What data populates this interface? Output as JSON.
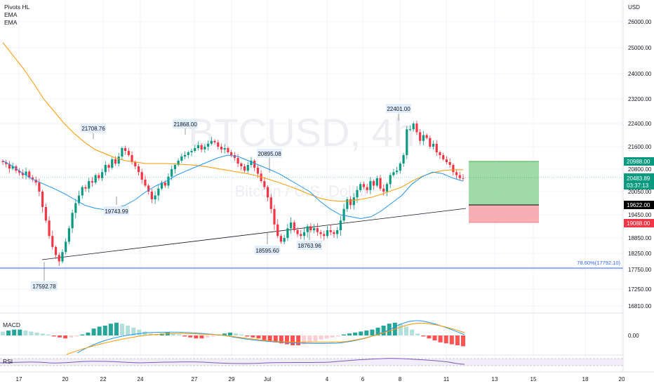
{
  "legend": {
    "items": [
      "Pivots HL",
      "EMA",
      "EMA"
    ]
  },
  "watermark": {
    "symbol": "BTCUSD, 4h",
    "description": "Bitcoin / U.S. Dollar"
  },
  "price_axis": {
    "currency": "USD",
    "ticks": [
      "26000.00",
      "25000.00",
      "24000.00",
      "23200.00",
      "22400.00",
      "21600.00",
      "20800.00",
      "20050.00",
      "19450.00",
      "18850.00",
      "18250.00",
      "17750.00",
      "17250.00",
      "16810.00"
    ]
  },
  "tags": {
    "take_profit": "20988.00",
    "last_price": "20483.89",
    "countdown": "03:37:13",
    "entry": "19622.00",
    "stop_loss": "19088.00",
    "colors": {
      "take_profit": "#089981",
      "last_price": "#089981",
      "entry": "#000000",
      "stop_loss": "#f23645"
    }
  },
  "fib": {
    "label": "78.60%(17792.10)",
    "color": "#2962ff"
  },
  "pivots": [
    "21708.76",
    "19743.99",
    "21868.00",
    "20895.08",
    "18595.60",
    "18763.96",
    "22401.00",
    "17592.78"
  ],
  "macd": {
    "title": "MACD",
    "zero_label": "0.00"
  },
  "rsi": {
    "title": "RSI"
  },
  "time_axis": {
    "labels": [
      "17",
      "20",
      "22",
      "24",
      "27",
      "29",
      "Jul",
      "4",
      "6",
      "8",
      "11",
      "13",
      "15",
      "18",
      "20"
    ]
  },
  "chart_data": {
    "type": "candlestick",
    "symbol": "BTCUSD",
    "interval": "4h",
    "currency": "USD",
    "ylim": [
      16810,
      26000
    ],
    "close": [
      21050,
      20980,
      20820,
      20900,
      20750,
      20680,
      20600,
      20720,
      20520,
      20450,
      20350,
      20050,
      19650,
      19300,
      18900,
      18500,
      18200,
      18000,
      18300,
      18700,
      19100,
      19500,
      19750,
      19950,
      20200,
      20150,
      20400,
      20350,
      20600,
      20500,
      20700,
      20950,
      20850,
      21150,
      21000,
      21250,
      21550,
      21450,
      21300,
      21050,
      20900,
      20700,
      20450,
      20250,
      20050,
      19850,
      19950,
      20150,
      20350,
      20250,
      20550,
      20800,
      20950,
      21100,
      21250,
      21300,
      21400,
      21450,
      21550,
      21650,
      21500,
      21600,
      21700,
      21800,
      21750,
      21600,
      21500,
      21550,
      21400,
      21300,
      21200,
      21000,
      20900,
      20750,
      20950,
      21100,
      20850,
      20650,
      20400,
      20200,
      19900,
      19600,
      19200,
      18900,
      18700,
      18850,
      19100,
      19250,
      19050,
      18950,
      18900,
      19000,
      19150,
      19050,
      19100,
      19000,
      18950,
      18900,
      19050,
      19000,
      18950,
      19050,
      19300,
      19600,
      19850,
      19700,
      19900,
      20100,
      20300,
      20200,
      20100,
      20400,
      20250,
      20500,
      20150,
      20050,
      20300,
      20600,
      20700,
      20750,
      21000,
      21300,
      22200,
      22200,
      22400,
      22100,
      21800,
      22000,
      21900,
      21600,
      21700,
      21400,
      21300,
      21150,
      21050,
      20950,
      20700,
      20600,
      20500,
      20483.89
    ],
    "ema_fast": {
      "color": "#2196f3",
      "values": [
        21100,
        20900,
        20650,
        20450,
        20300,
        20150,
        20000,
        19850,
        19700,
        19620,
        19580,
        19620,
        19700,
        19850,
        20050,
        20250,
        20400,
        20600,
        20750,
        20900,
        21050,
        21200,
        21300,
        21250,
        21100,
        20950,
        20800,
        20650,
        20450,
        20250,
        20050,
        19800,
        19600,
        19450,
        19400,
        19350,
        19400,
        19550,
        19750,
        19950,
        20300,
        20550,
        20700,
        20650,
        20500,
        20400
      ]
    },
    "ema_slow": {
      "color": "#ff9800",
      "values": [
        25200,
        24700,
        24200,
        23700,
        23200,
        22800,
        22400,
        22050,
        21750,
        21500,
        21350,
        21200,
        21100,
        21050,
        21000,
        21000,
        21000,
        20980,
        20960,
        20930,
        20880,
        20820,
        20760,
        20700,
        20640,
        20560,
        20460,
        20350,
        20230,
        20100,
        19980,
        19880,
        19820,
        19800,
        19810,
        19850,
        19900,
        19980,
        20080,
        20200,
        20400,
        20560,
        20680,
        20750,
        20780,
        20780
      ]
    },
    "pivots_high": [
      21708.76,
      21868.0,
      20895.08,
      22401.0
    ],
    "pivots_low": [
      17592.78,
      19743.99,
      18595.6,
      18763.96
    ],
    "trend_line": [
      17620,
      19700
    ],
    "fib_level": {
      "label": "78.60%",
      "value": 17792.1
    },
    "position": {
      "take_profit": 20988.0,
      "entry": 19622.0,
      "stop_loss": 19088.0
    },
    "macd": {
      "hist": [
        0.4,
        0.5,
        0.6,
        0.6,
        0.5,
        0.4,
        0.3,
        0.2,
        0.1,
        -0.1,
        -0.2,
        -0.3,
        -0.2,
        -0.1,
        0.1,
        0.3,
        0.7,
        0.9,
        1.0,
        1.2,
        1.3,
        1.2,
        1.0,
        0.8,
        0.6,
        0.4,
        0.2,
        0.1,
        0.2,
        0.3,
        0.2,
        0.1,
        -0.1,
        -0.2,
        -0.3,
        -0.3,
        -0.2,
        -0.1,
        0.1,
        0.2,
        0.3,
        0.2,
        0.1,
        -0.1,
        -0.2,
        -0.3,
        -0.5,
        -0.6,
        -0.7,
        -0.8,
        -0.9,
        -1.0,
        -1.0,
        -0.9,
        -0.7,
        -0.6,
        -0.4,
        -0.3,
        -0.2,
        -0.1,
        0.1,
        0.2,
        0.3,
        0.4,
        0.5,
        0.6,
        0.8,
        1.0,
        1.2,
        1.3,
        1.2,
        0.9,
        0.6,
        0.2,
        -0.1,
        -0.3,
        -0.5,
        -0.7,
        -0.8,
        -0.9,
        -1.0,
        -1.1
      ]
    },
    "rsi": {
      "color": "#7e57c2"
    }
  }
}
